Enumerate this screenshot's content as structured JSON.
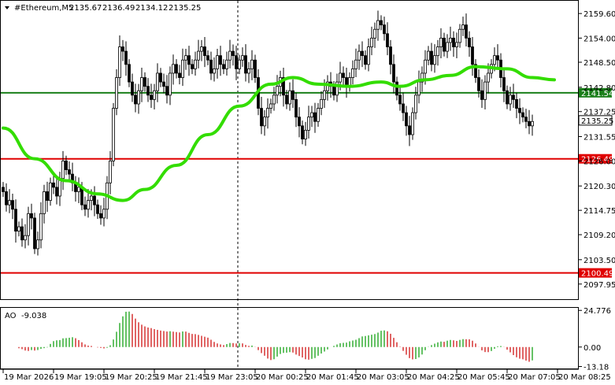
{
  "chart_data": {
    "type": "candlestick",
    "header": {
      "symbol": "#Ethereum,M5",
      "open": "2135.67",
      "high": "2136.49",
      "low": "2134.12",
      "close": "2135.25"
    },
    "price_axis": {
      "ylim": [
        2094.5,
        2162.5
      ],
      "ticks": [
        "2159.60",
        "2154.00",
        "2148.50",
        "2142.80",
        "2137.25",
        "2131.55",
        "2126.00",
        "2120.30",
        "2114.75",
        "2109.20",
        "2103.50",
        "2097.95"
      ],
      "tick_values": [
        2159.6,
        2154.0,
        2148.5,
        2142.8,
        2137.25,
        2131.55,
        2126.0,
        2120.3,
        2114.75,
        2109.2,
        2103.5,
        2097.95
      ]
    },
    "time_axis": {
      "labels": [
        "19 Mar 2026",
        "19 Mar 19:05",
        "19 Mar 20:25",
        "19 Mar 21:45",
        "19 Mar 23:05",
        "20 Mar 00:25",
        "20 Mar 01:45",
        "20 Mar 03:05",
        "20 Mar 04:25",
        "20 Mar 05:45",
        "20 Mar 07:05",
        "20 Mar 08:25"
      ],
      "label_bar_index": [
        0,
        16,
        32,
        48,
        64,
        80,
        96,
        112,
        128,
        144,
        160,
        176
      ]
    },
    "levels": [
      {
        "value": 2141.54,
        "label": "2141.54",
        "color": "#1a7f1a"
      },
      {
        "value": 2126.49,
        "label": "2126.49",
        "color": "#e00000"
      },
      {
        "value": 2100.49,
        "label": "2100.49",
        "color": "#e00000"
      }
    ],
    "current_price": {
      "value": 2135.25,
      "label": "2135.25"
    },
    "ma_color": "#33dd00",
    "ma": [
      [
        0,
        2133.5
      ],
      [
        10,
        2126.5
      ],
      [
        20,
        2121.5
      ],
      [
        30,
        2118.5
      ],
      [
        38,
        2117.0
      ],
      [
        45,
        2119.5
      ],
      [
        55,
        2125.0
      ],
      [
        65,
        2132.0
      ],
      [
        75,
        2138.5
      ],
      [
        85,
        2143.5
      ],
      [
        92,
        2145.0
      ],
      [
        100,
        2143.5
      ],
      [
        110,
        2143.0
      ],
      [
        120,
        2144.0
      ],
      [
        126,
        2143.0
      ],
      [
        134,
        2144.5
      ],
      [
        142,
        2145.5
      ],
      [
        150,
        2147.5
      ],
      [
        160,
        2147.0
      ],
      [
        168,
        2145.0
      ],
      [
        175,
        2144.5
      ]
    ],
    "closes": [
      2119,
      2116,
      2117,
      2115,
      2110,
      2111,
      2108,
      2109,
      2114,
      2113,
      2106,
      2108,
      2114,
      2119,
      2117,
      2121,
      2120,
      2118,
      2122,
      2126,
      2124,
      2123,
      2121,
      2119,
      2120,
      2116,
      2115,
      2117,
      2118,
      2116,
      2114,
      2113,
      2115,
      2121,
      2126,
      2138,
      2145,
      2152,
      2151,
      2148,
      2144,
      2141,
      2139,
      2142,
      2145,
      2143,
      2141,
      2140,
      2142,
      2146,
      2144,
      2143,
      2141,
      2146,
      2148,
      2146,
      2145,
      2149,
      2150,
      2148,
      2147,
      2149,
      2151,
      2152,
      2150,
      2149,
      2146,
      2147,
      2150,
      2148,
      2147,
      2149,
      2151,
      2150,
      2147,
      2149,
      2150,
      2146,
      2147,
      2149,
      2145,
      2138,
      2134,
      2136,
      2138,
      2139,
      2141,
      2143,
      2145,
      2141,
      2139,
      2142,
      2140,
      2136,
      2134,
      2131,
      2133,
      2136,
      2137,
      2135,
      2138,
      2140,
      2142,
      2144,
      2143,
      2141,
      2144,
      2146,
      2145,
      2143,
      2145,
      2147,
      2149,
      2151,
      2150,
      2148,
      2152,
      2154,
      2156,
      2158,
      2157,
      2155,
      2152,
      2148,
      2144,
      2141,
      2139,
      2137,
      2134,
      2132,
      2137,
      2141,
      2144,
      2146,
      2149,
      2151,
      2148,
      2150,
      2152,
      2154,
      2151,
      2153,
      2154,
      2152,
      2153,
      2156,
      2157,
      2154,
      2152,
      2148,
      2145,
      2142,
      2140,
      2144,
      2146,
      2148,
      2150,
      2149,
      2145,
      2142,
      2139,
      2141,
      2140,
      2138,
      2137,
      2136,
      2135,
      2134,
      2135
    ],
    "ao": {
      "label": "AO",
      "current": "-9.038",
      "ylim": [
        -14.5,
        26.5
      ],
      "ticks": [
        "24.776",
        "0.00",
        "-13.18"
      ],
      "tick_values": [
        24.776,
        0.0,
        -13.18
      ],
      "up_color": "#009900",
      "down_color": "#cc0000"
    }
  }
}
